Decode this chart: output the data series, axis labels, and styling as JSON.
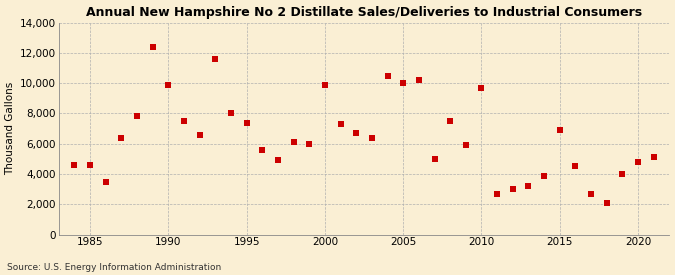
{
  "title": "Annual New Hampshire No 2 Distillate Sales/Deliveries to Industrial Consumers",
  "ylabel": "Thousand Gallons",
  "source": "Source: U.S. Energy Information Administration",
  "background_color": "#faefd4",
  "marker_color": "#cc0000",
  "marker_size": 18,
  "xlim": [
    1983,
    2022
  ],
  "ylim": [
    0,
    14000
  ],
  "xticks": [
    1985,
    1990,
    1995,
    2000,
    2005,
    2010,
    2015,
    2020
  ],
  "yticks": [
    0,
    2000,
    4000,
    6000,
    8000,
    10000,
    12000,
    14000
  ],
  "data": [
    [
      1984,
      4600
    ],
    [
      1985,
      4600
    ],
    [
      1986,
      3500
    ],
    [
      1987,
      6400
    ],
    [
      1988,
      7800
    ],
    [
      1989,
      12400
    ],
    [
      1990,
      9900
    ],
    [
      1991,
      7500
    ],
    [
      1992,
      6600
    ],
    [
      1993,
      11600
    ],
    [
      1994,
      8000
    ],
    [
      1995,
      7400
    ],
    [
      1996,
      5600
    ],
    [
      1997,
      4900
    ],
    [
      1998,
      6100
    ],
    [
      1999,
      6000
    ],
    [
      2000,
      9900
    ],
    [
      2001,
      7300
    ],
    [
      2002,
      6700
    ],
    [
      2003,
      6400
    ],
    [
      2004,
      10500
    ],
    [
      2005,
      10000
    ],
    [
      2006,
      10200
    ],
    [
      2007,
      5000
    ],
    [
      2008,
      7500
    ],
    [
      2009,
      5900
    ],
    [
      2010,
      9700
    ],
    [
      2011,
      2700
    ],
    [
      2012,
      3000
    ],
    [
      2013,
      3200
    ],
    [
      2014,
      3900
    ],
    [
      2015,
      6900
    ],
    [
      2016,
      4500
    ],
    [
      2017,
      2700
    ],
    [
      2018,
      2100
    ],
    [
      2019,
      4000
    ],
    [
      2020,
      4800
    ],
    [
      2021,
      5100
    ]
  ]
}
